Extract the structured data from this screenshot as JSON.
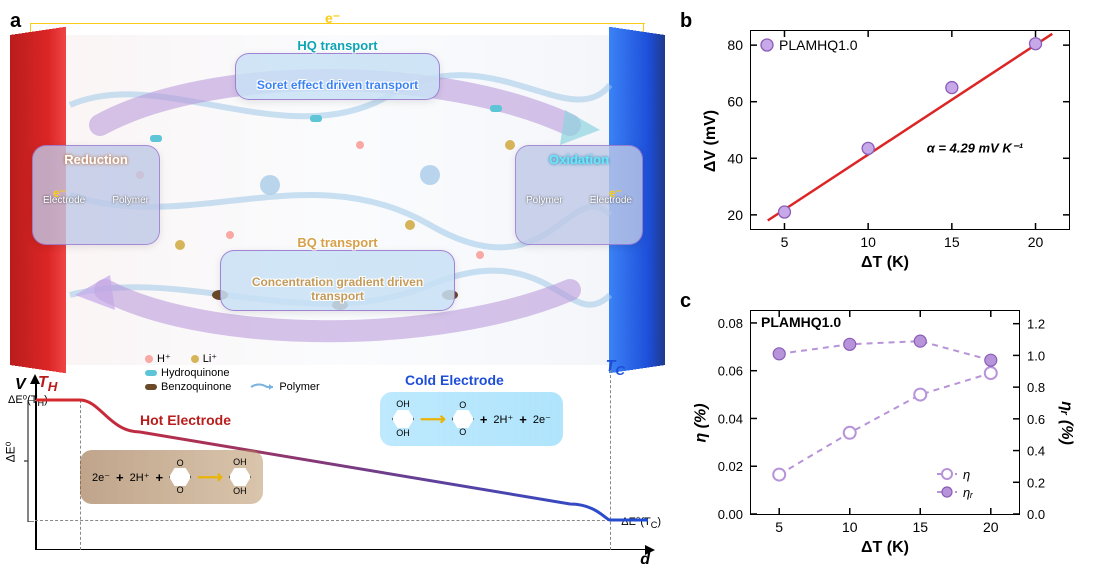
{
  "panel_a": {
    "label": "a",
    "top_labels": {
      "hq_transport": "HQ transport",
      "hq_sub": "Soret effect driven transport",
      "bq_transport": "BQ transport",
      "bq_sub": "Concentration gradient driven transport",
      "reduction": "Reduction",
      "oxidation": "Oxidation",
      "electrode": "Electrode",
      "polymer": "Polymer",
      "electron": "e⁻"
    },
    "legend": {
      "h_plus": "H⁺",
      "li_plus": "Li⁺",
      "hydroquinone": "Hydroquinone",
      "benzoquinone": "Benzoquinone",
      "polymer": "Polymer"
    },
    "legend_colors": {
      "h_plus": "#f9a8a4",
      "li_plus": "#d6b45a",
      "hydroquinone": "#5ec5d6",
      "benzoquinone": "#6b4a2a",
      "polymer": "#7bb3e0"
    },
    "bottom": {
      "V": "V",
      "T_H": "T_H",
      "T_C": "T_C",
      "hot_electrode": "Hot Electrode",
      "cold_electrode": "Cold Electrode",
      "dE0": "ΔE⁰",
      "dE0_TH": "ΔE⁰(T_H)",
      "dE0_TC": "ΔE⁰(T_C)",
      "d": "d",
      "plus_2h": "2H⁺",
      "plus_2e": "2e⁻",
      "plus": "+"
    }
  },
  "panel_b": {
    "label": "b",
    "series_name": "PLAMHQ1.0",
    "annotation": "α = 4.29 mV K⁻¹",
    "xlabel": "ΔT (K)",
    "ylabel": "ΔV (mV)",
    "xlim": [
      3,
      22
    ],
    "ylim": [
      15,
      85
    ],
    "xticks": [
      5,
      10,
      15,
      20
    ],
    "yticks": [
      20,
      40,
      60,
      80
    ],
    "point_color": "#c7a8e8",
    "point_border": "#8b5cb8",
    "fit_color": "#dc2626",
    "data": [
      {
        "x": 5,
        "y": 21
      },
      {
        "x": 10,
        "y": 43.5
      },
      {
        "x": 15,
        "y": 65
      },
      {
        "x": 20,
        "y": 80.5
      }
    ],
    "fit_line": {
      "x1": 4,
      "y1": 18,
      "x2": 21,
      "y2": 84
    }
  },
  "panel_c": {
    "label": "c",
    "series_name": "PLAMHQ1.0",
    "xlabel": "ΔT (K)",
    "ylabel_left": "η (%)",
    "ylabel_right": "ηᵣ (%)",
    "xlim": [
      3,
      22
    ],
    "ylim_left": [
      0.0,
      0.085
    ],
    "ylim_right": [
      0.0,
      1.28
    ],
    "xticks": [
      5,
      10,
      15,
      20
    ],
    "yticks_left": [
      0.0,
      0.02,
      0.04,
      0.06,
      0.08
    ],
    "yticks_right": [
      0.0,
      0.2,
      0.4,
      0.6,
      0.8,
      1.0,
      1.2
    ],
    "color_eta": "#b794d9",
    "color_etar": "#b794d9",
    "legend_eta": "η",
    "legend_etar": "ηᵣ",
    "data_eta": [
      {
        "x": 5,
        "y": 0.0165
      },
      {
        "x": 10,
        "y": 0.034
      },
      {
        "x": 15,
        "y": 0.05
      },
      {
        "x": 20,
        "y": 0.059
      }
    ],
    "data_etar": [
      {
        "x": 5,
        "y": 1.01
      },
      {
        "x": 10,
        "y": 1.07
      },
      {
        "x": 15,
        "y": 1.09
      },
      {
        "x": 20,
        "y": 0.97
      }
    ]
  }
}
